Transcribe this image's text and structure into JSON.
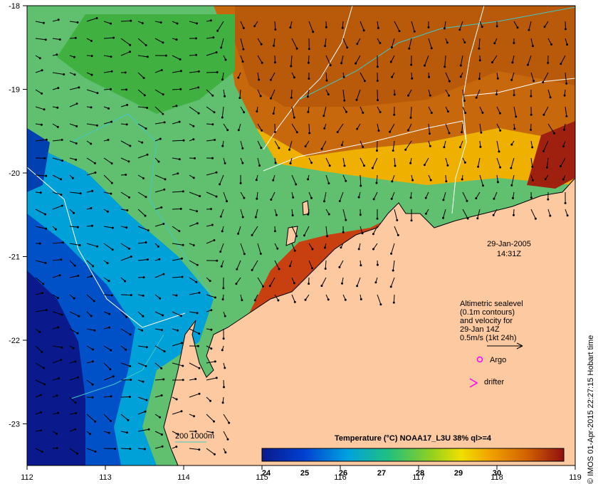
{
  "map": {
    "date": "29-Jan-2005",
    "time": "14:31Z",
    "x_ticks": [
      "112",
      "113",
      "114",
      "115",
      "116",
      "117",
      "118",
      "119"
    ],
    "y_ticks": [
      "-18",
      "-19",
      "-20",
      "-21",
      "-22",
      "-23"
    ],
    "info_lines": [
      "Altimetric sealevel",
      "(0.1m contours)",
      "and velocity for",
      "29-Jan 14Z",
      "0.5m/s (1kt 24h)"
    ],
    "legend_argo": "Argo",
    "legend_drifter": "drifter",
    "isobath_label": "200  1000m",
    "colorbar_title": "Temperature (°C) NOAA17_L3U 38% ql>=4",
    "colorbar_ticks": [
      "24",
      "25",
      "26",
      "27",
      "28",
      "29",
      "30"
    ],
    "credit": "© IMOS 01-Apr-2015 22:27:15 Hobart time",
    "colors": {
      "land": "#fcc9a0",
      "argo": "#ff00ff",
      "drifter": "#ff00ff",
      "isobath": "#40c8c8",
      "contour": "#ffffff"
    }
  }
}
